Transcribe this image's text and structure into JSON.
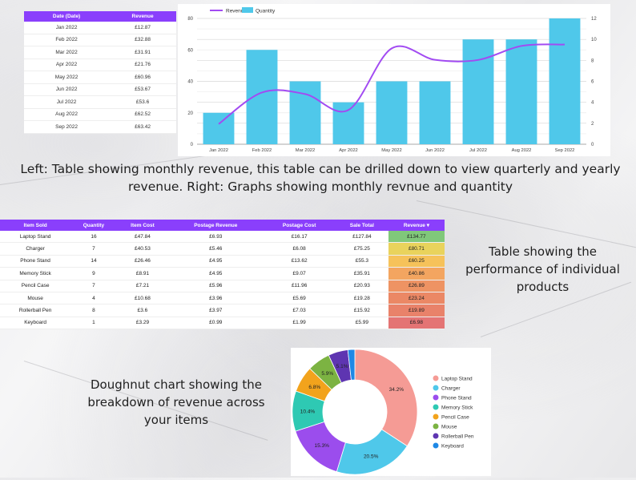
{
  "month_table": {
    "headers": [
      "Date (Date)",
      "Revenue"
    ],
    "rows": [
      [
        "Jan 2022",
        "£12.87"
      ],
      [
        "Feb 2022",
        "£32.88"
      ],
      [
        "Mar 2022",
        "£31.91"
      ],
      [
        "Apr 2022",
        "£21.76"
      ],
      [
        "May 2022",
        "£60.96"
      ],
      [
        "Jun 2022",
        "£53.67"
      ],
      [
        "Jul 2022",
        "£53.6"
      ],
      [
        "Aug 2022",
        "£62.52"
      ],
      [
        "Sep 2022",
        "£63.42"
      ]
    ]
  },
  "captions": {
    "top": "Left: Table showing monthly revenue, this table can be drilled down to view quarterly and yearly revenue. Right: Graphs showing monthly revnue and quantity",
    "right": "Table showing the performance of individual products",
    "bottom": "Doughnut chart showing the breakdown of revenue across your items"
  },
  "product_table": {
    "headers": [
      "Item Sold",
      "Quantity",
      "Item Cost",
      "Postage Revenue",
      "Postage Cost",
      "Sale Total",
      "Revenue ▾"
    ],
    "rows": [
      [
        "Laptop Stand",
        "16",
        "£47.84",
        "£6.93",
        "£16.17",
        "£127.84",
        "£134.77"
      ],
      [
        "Charger",
        "7",
        "£40.53",
        "£5.46",
        "£6.08",
        "£75.25",
        "£80.71"
      ],
      [
        "Phone Stand",
        "14",
        "£26.46",
        "£4.95",
        "£13.62",
        "£55.3",
        "£60.25"
      ],
      [
        "Memory Stick",
        "9",
        "£8.91",
        "£4.95",
        "£9.07",
        "£35.91",
        "£40.86"
      ],
      [
        "Pencil Case",
        "7",
        "£7.21",
        "£5.96",
        "£11.96",
        "£20.93",
        "£26.89"
      ],
      [
        "Mouse",
        "4",
        "£10.68",
        "£3.96",
        "£5.69",
        "£19.28",
        "£23.24"
      ],
      [
        "Rollerball Pen",
        "8",
        "£3.6",
        "£3.97",
        "£7.03",
        "£15.92",
        "£19.89"
      ],
      [
        "Keyboard",
        "1",
        "£3.29",
        "£0.99",
        "£1.99",
        "£5.99",
        "£6.98"
      ]
    ],
    "revenue_colors": [
      "#80c87a",
      "#e9d35c",
      "#f6c25a",
      "#f3a560",
      "#ee9363",
      "#eb8865",
      "#e9826a",
      "#e47474"
    ]
  },
  "chart_data": [
    {
      "type": "bar+line",
      "categories": [
        "Jan 2022",
        "Feb 2022",
        "Mar 2022",
        "Apr 2022",
        "May 2022",
        "Jun 2022",
        "Jul 2022",
        "Aug 2022",
        "Sep 2022"
      ],
      "series": [
        {
          "name": "Revenue",
          "kind": "line",
          "axis": "left",
          "values": [
            12.87,
            32.88,
            31.91,
            21.76,
            60.96,
            53.67,
            53.6,
            62.52,
            63.42
          ],
          "color": "#a24bf2"
        },
        {
          "name": "Quantity",
          "kind": "bar",
          "axis": "right",
          "values": [
            3,
            9,
            6,
            4,
            6,
            6,
            10,
            10,
            12
          ],
          "color": "#4fc8ea"
        }
      ],
      "y_left": {
        "range": [
          0,
          80
        ],
        "ticks": [
          "0",
          "20",
          "40",
          "60",
          "80"
        ]
      },
      "y_right": {
        "range": [
          0,
          12
        ],
        "ticks": [
          "0",
          "2",
          "4",
          "6",
          "8",
          "10",
          "12"
        ]
      },
      "legend": "top-left",
      "grid": true
    },
    {
      "type": "pie",
      "style": "doughnut",
      "labels": [
        "Laptop Stand",
        "Charger",
        "Phone Stand",
        "Memory Stick",
        "Pencil Case",
        "Mouse",
        "Rollerball Pen",
        "Keyboard"
      ],
      "values": [
        34.2,
        20.5,
        15.3,
        10.4,
        6.8,
        5.9,
        5.1,
        1.8
      ],
      "value_labels": [
        "34.2%",
        "20.5%",
        "15.3%",
        "10.4%",
        "6.8%",
        "5.9%",
        "5.1%",
        ""
      ],
      "colors": [
        "#f59b95",
        "#4fc8ea",
        "#9b4ded",
        "#2ec9b3",
        "#f2a31c",
        "#7cb342",
        "#5e35b1",
        "#1e88e5"
      ],
      "legend": "right"
    }
  ]
}
